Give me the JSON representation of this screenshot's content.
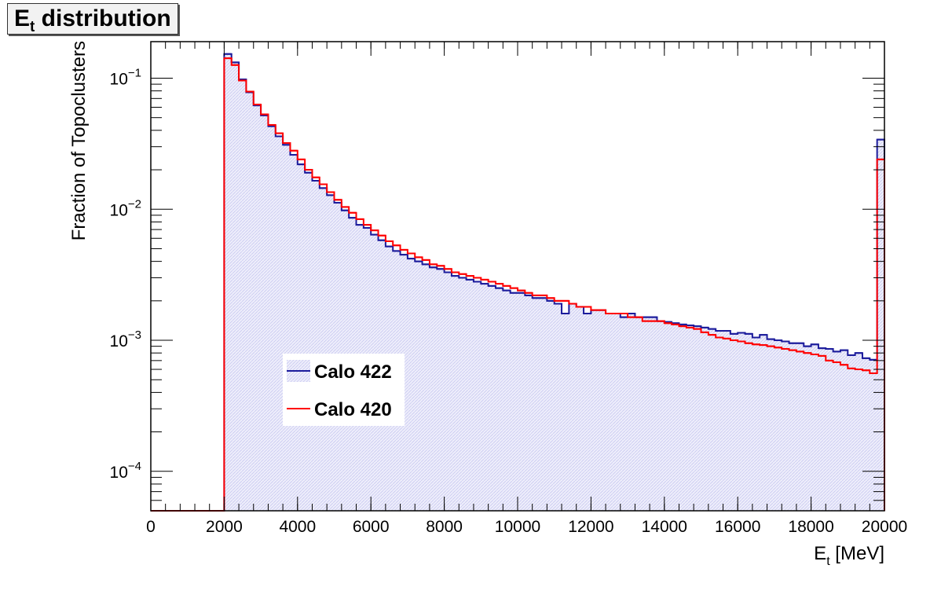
{
  "title": {
    "main": "E",
    "sub": "t",
    "rest": " distribution"
  },
  "chart_data": {
    "type": "line",
    "title": "Et distribution",
    "xlabel": {
      "main": "E",
      "sub": "t",
      "rest": " [MeV]"
    },
    "ylabel": "Fraction of Topoclusters",
    "xlim": [
      0,
      20000
    ],
    "ylim": [
      5e-05,
      0.19
    ],
    "yscale": "log",
    "grid": false,
    "legend_position": "lower-left",
    "x_ticks": [
      "0",
      "2000",
      "4000",
      "6000",
      "8000",
      "10000",
      "12000",
      "14000",
      "16000",
      "18000",
      "20000"
    ],
    "y_ticks": [
      {
        "base": "10",
        "exp": "-1"
      },
      {
        "base": "10",
        "exp": "-2"
      },
      {
        "base": "10",
        "exp": "-3"
      },
      {
        "base": "10",
        "exp": "-4"
      }
    ],
    "bin_edges": [
      0,
      20000
    ],
    "bins": 100,
    "series": [
      {
        "name": "Calo 422",
        "color": "#1c1c9c",
        "fill": "#e3e3f7",
        "values": [
          0,
          0,
          0,
          0,
          0,
          0,
          0,
          0,
          0,
          0,
          0.153,
          0.132,
          0.098,
          0.078,
          0.062,
          0.052,
          0.043,
          0.036,
          0.031,
          0.026,
          0.022,
          0.019,
          0.0165,
          0.0145,
          0.0128,
          0.0112,
          0.0098,
          0.0086,
          0.0076,
          0.0072,
          0.0064,
          0.0058,
          0.0052,
          0.0048,
          0.0045,
          0.0042,
          0.004,
          0.0038,
          0.0036,
          0.0035,
          0.0033,
          0.0031,
          0.003,
          0.0029,
          0.0028,
          0.0027,
          0.0026,
          0.0025,
          0.0024,
          0.0023,
          0.0023,
          0.0022,
          0.0021,
          0.0021,
          0.002,
          0.0019,
          0.0016,
          0.0019,
          0.0018,
          0.0016,
          0.0017,
          0.0017,
          0.0016,
          0.0016,
          0.0015,
          0.0016,
          0.0015,
          0.0015,
          0.0015,
          0.0014,
          0.00138,
          0.00135,
          0.00132,
          0.0013,
          0.00128,
          0.00125,
          0.00122,
          0.00118,
          0.00118,
          0.00112,
          0.00114,
          0.00112,
          0.00105,
          0.0011,
          0.00102,
          0.001,
          0.00098,
          0.00095,
          0.00095,
          0.0009,
          0.00093,
          0.00087,
          0.00086,
          0.00082,
          0.00084,
          0.00077,
          0.0008,
          0.00073,
          0.00071,
          0.034
        ]
      },
      {
        "name": "Calo 420",
        "color": "#ff0000",
        "fill": "none",
        "values": [
          0,
          0,
          0,
          0,
          0,
          0,
          0,
          0,
          0,
          0,
          0.142,
          0.126,
          0.096,
          0.079,
          0.063,
          0.053,
          0.044,
          0.038,
          0.032,
          0.028,
          0.024,
          0.02,
          0.0175,
          0.0155,
          0.0135,
          0.0118,
          0.0104,
          0.0094,
          0.0084,
          0.0076,
          0.0069,
          0.0063,
          0.0057,
          0.0053,
          0.0049,
          0.0046,
          0.0043,
          0.0041,
          0.0038,
          0.0037,
          0.0035,
          0.0033,
          0.0032,
          0.0031,
          0.003,
          0.0029,
          0.0028,
          0.0027,
          0.0026,
          0.0025,
          0.0024,
          0.0023,
          0.0022,
          0.0022,
          0.0021,
          0.002,
          0.002,
          0.0019,
          0.0018,
          0.0018,
          0.0017,
          0.0017,
          0.0016,
          0.0016,
          0.0016,
          0.0015,
          0.0015,
          0.0014,
          0.0014,
          0.0014,
          0.00135,
          0.00132,
          0.00128,
          0.00125,
          0.00122,
          0.00115,
          0.0011,
          0.00105,
          0.00103,
          0.001,
          0.00098,
          0.00095,
          0.00093,
          0.00092,
          0.0009,
          0.00088,
          0.00086,
          0.00084,
          0.00082,
          0.0008,
          0.00078,
          0.00076,
          0.0007,
          0.00068,
          0.00065,
          0.00061,
          0.0006,
          0.00059,
          0.00056,
          0.024
        ]
      }
    ]
  }
}
